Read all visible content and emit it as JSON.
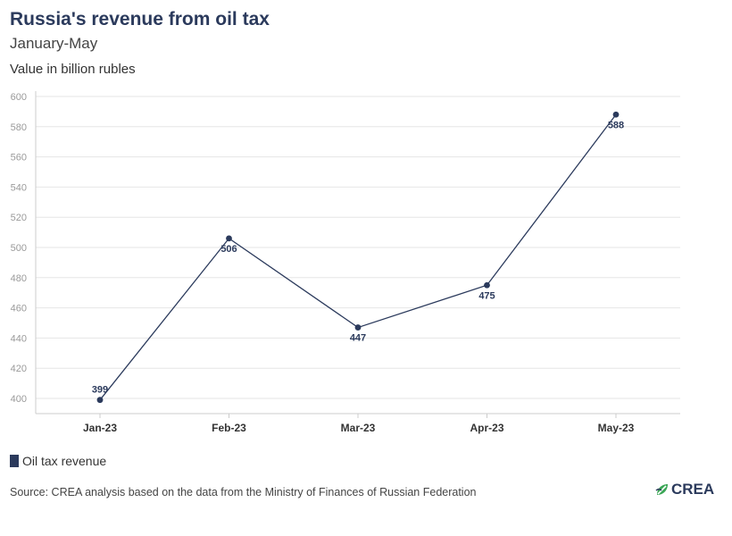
{
  "header": {
    "title": "Russia's revenue from oil tax",
    "subtitle": "January-May",
    "unit_note": "Value in billion rubles"
  },
  "legend": {
    "label": "Oil tax revenue"
  },
  "footer": {
    "source": "Source: CREA analysis based on the data from the Ministry of Finances of Russian Federation",
    "logo_text": "CREA",
    "logo_icon": "crea-leaf-icon"
  },
  "colors": {
    "series": "#2b3a5c",
    "grid": "#e6e6e6",
    "logo_green": "#3aa655"
  },
  "chart_data": {
    "type": "line",
    "title": "Russia's revenue from oil tax",
    "subtitle": "January-May",
    "ylabel": "Value in billion rubles",
    "categories": [
      "Jan-23",
      "Feb-23",
      "Mar-23",
      "Apr-23",
      "May-23"
    ],
    "series": [
      {
        "name": "Oil tax revenue",
        "values": [
          399,
          506,
          447,
          475,
          588
        ]
      }
    ],
    "ylim": [
      390,
      600
    ],
    "yticks": [
      400,
      420,
      440,
      460,
      480,
      500,
      520,
      540,
      560,
      580,
      600
    ],
    "grid": true,
    "legend_position": "bottom-left",
    "data_labels": true
  }
}
